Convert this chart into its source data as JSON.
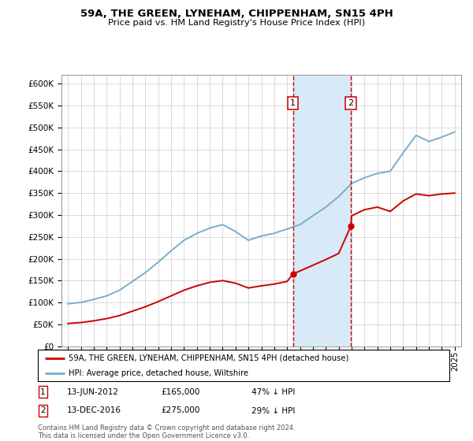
{
  "title": "59A, THE GREEN, LYNEHAM, CHIPPENHAM, SN15 4PH",
  "subtitle": "Price paid vs. HM Land Registry's House Price Index (HPI)",
  "ylabel_ticks": [
    "£0",
    "£50K",
    "£100K",
    "£150K",
    "£200K",
    "£250K",
    "£300K",
    "£350K",
    "£400K",
    "£450K",
    "£500K",
    "£550K",
    "£600K"
  ],
  "ytick_values": [
    0,
    50000,
    100000,
    150000,
    200000,
    250000,
    300000,
    350000,
    400000,
    450000,
    500000,
    550000,
    600000
  ],
  "ylim": [
    0,
    620000
  ],
  "xlim_left": 1994.5,
  "xlim_right": 2025.5,
  "xtick_years": [
    1995,
    1996,
    1997,
    1998,
    1999,
    2000,
    2001,
    2002,
    2003,
    2004,
    2005,
    2006,
    2007,
    2008,
    2009,
    2010,
    2011,
    2012,
    2013,
    2014,
    2015,
    2016,
    2017,
    2018,
    2019,
    2020,
    2021,
    2022,
    2023,
    2024,
    2025
  ],
  "sale1_year": 2012.45,
  "sale1_price": 165000,
  "sale1_label": "1",
  "sale1_date": "13-JUN-2012",
  "sale1_amount": "£165,000",
  "sale1_pct": "47% ↓ HPI",
  "sale2_year": 2016.95,
  "sale2_price": 275000,
  "sale2_label": "2",
  "sale2_date": "13-DEC-2016",
  "sale2_amount": "£275,000",
  "sale2_pct": "29% ↓ HPI",
  "red_line_color": "#cc0000",
  "blue_line_color": "#7aadcc",
  "shade_color": "#d8eaf7",
  "vline_color": "#cc0000",
  "legend_label1": "59A, THE GREEN, LYNEHAM, CHIPPENHAM, SN15 4PH (detached house)",
  "legend_label2": "HPI: Average price, detached house, Wiltshire",
  "footnote": "Contains HM Land Registry data © Crown copyright and database right 2024.\nThis data is licensed under the Open Government Licence v3.0.",
  "hpi_years": [
    1995,
    1996,
    1997,
    1998,
    1999,
    2000,
    2001,
    2002,
    2003,
    2004,
    2005,
    2006,
    2007,
    2008,
    2009,
    2010,
    2011,
    2012,
    2013,
    2014,
    2015,
    2016,
    2017,
    2018,
    2019,
    2020,
    2021,
    2022,
    2023,
    2024,
    2025
  ],
  "hpi_values": [
    97000,
    100000,
    107000,
    115000,
    128000,
    148000,
    168000,
    192000,
    218000,
    242000,
    258000,
    270000,
    278000,
    262000,
    242000,
    252000,
    258000,
    268000,
    278000,
    298000,
    318000,
    342000,
    372000,
    385000,
    395000,
    400000,
    442000,
    482000,
    468000,
    478000,
    490000
  ],
  "prop_years": [
    1995,
    1996,
    1997,
    1998,
    1999,
    2000,
    2001,
    2002,
    2003,
    2004,
    2005,
    2006,
    2007,
    2008,
    2009,
    2010,
    2011,
    2012,
    2012.45,
    2013,
    2014,
    2015,
    2016,
    2016.95,
    2017,
    2018,
    2019,
    2020,
    2021,
    2022,
    2023,
    2024,
    2025
  ],
  "prop_values": [
    52000,
    54000,
    58000,
    63000,
    70000,
    80000,
    90000,
    102000,
    115000,
    128000,
    138000,
    146000,
    150000,
    144000,
    133000,
    138000,
    142000,
    148000,
    165000,
    172000,
    185000,
    198000,
    212000,
    275000,
    298000,
    312000,
    318000,
    308000,
    332000,
    348000,
    344000,
    348000,
    350000
  ]
}
